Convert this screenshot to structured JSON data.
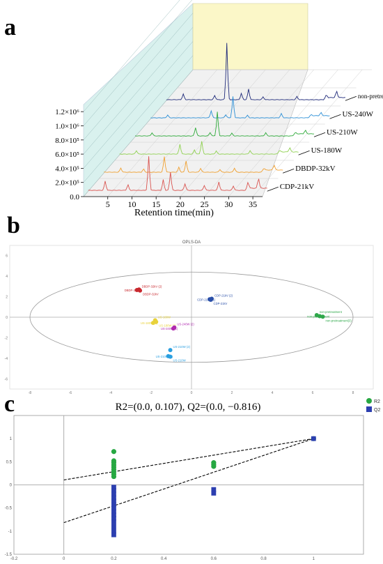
{
  "panel_labels": {
    "a": "a",
    "b": "b",
    "c": "c"
  },
  "chart_data": [
    {
      "type": "line",
      "panel": "a",
      "xlabel": "Retention time(min)",
      "x_ticks": [
        5,
        10,
        15,
        20,
        25,
        30,
        35
      ],
      "y_ticks": [
        "0.0",
        "2.0×10⁵",
        "4.0×10⁵",
        "6.0×10⁵",
        "8.0×10⁵",
        "1.0×10⁶",
        "1.2×10⁶"
      ],
      "ylim": [
        0,
        1300000
      ],
      "xlim": [
        0,
        37
      ],
      "series": [
        {
          "name": "CDP-21kV",
          "color": "#d9534f",
          "peaks": [
            [
              3.5,
              130000
            ],
            [
              8.2,
              80000
            ],
            [
              12.5,
              480000
            ],
            [
              15.5,
              150000
            ],
            [
              17,
              260000
            ],
            [
              20,
              95000
            ],
            [
              24,
              70000
            ],
            [
              27,
              120000
            ],
            [
              30,
              60000
            ],
            [
              33,
              110000
            ],
            [
              35.2,
              140000
            ]
          ]
        },
        {
          "name": "DBDP-32kV",
          "color": "#f0a030",
          "peaks": [
            [
              3.5,
              60000
            ],
            [
              8.2,
              45000
            ],
            [
              12.5,
              220000
            ],
            [
              15.5,
              70000
            ],
            [
              17,
              160000
            ],
            [
              20,
              55000
            ],
            [
              24,
              40000
            ],
            [
              27,
              60000
            ],
            [
              33,
              50000
            ],
            [
              35.2,
              70000
            ]
          ]
        },
        {
          "name": "US-180W",
          "color": "#8fd14f",
          "peaks": [
            [
              3.5,
              50000
            ],
            [
              12.5,
              140000
            ],
            [
              15.5,
              60000
            ],
            [
              17,
              180000
            ],
            [
              20,
              45000
            ],
            [
              27,
              50000
            ],
            [
              33,
              45000
            ],
            [
              35.2,
              60000
            ]
          ]
        },
        {
          "name": "US-210W",
          "color": "#2eaa3a",
          "peaks": [
            [
              3.5,
              45000
            ],
            [
              12.5,
              120000
            ],
            [
              15.5,
              50000
            ],
            [
              17,
              340000
            ],
            [
              20,
              40000
            ],
            [
              27,
              45000
            ],
            [
              33,
              40000
            ],
            [
              35.2,
              50000
            ]
          ]
        },
        {
          "name": "US-240W",
          "color": "#2b8fd6",
          "peaks": [
            [
              3.5,
              40000
            ],
            [
              12.5,
              100000
            ],
            [
              15.5,
              45000
            ],
            [
              17,
              300000
            ],
            [
              20,
              35000
            ],
            [
              27,
              60000
            ],
            [
              33,
              35000
            ],
            [
              35.2,
              45000
            ]
          ]
        },
        {
          "name": "non-pretreatment",
          "color": "#1f2a7a",
          "peaks": [
            [
              3.5,
              80000
            ],
            [
              10,
              60000
            ],
            [
              12.5,
              800000
            ],
            [
              15.5,
              90000
            ],
            [
              17,
              150000
            ],
            [
              20,
              40000
            ],
            [
              27,
              45000
            ],
            [
              33,
              60000
            ],
            [
              35.2,
              90000
            ]
          ]
        }
      ]
    },
    {
      "type": "scatter",
      "panel": "b",
      "title": "OPLS-DA",
      "xlim": [
        -9,
        9
      ],
      "ylim": [
        -7,
        7
      ],
      "x_ticks": [
        -8,
        -6,
        -4,
        -2,
        0,
        2,
        4,
        6,
        8
      ],
      "y_ticks": [
        -6,
        -4,
        -2,
        0,
        2,
        4,
        6
      ],
      "groups": [
        {
          "color": "#c8282e",
          "points": [
            {
              "x": -2.6,
              "y": 2.7,
              "label": "DBDP-32kV (2)"
            },
            {
              "x": -2.7,
              "y": 2.65,
              "label": "DBDP-32kV"
            },
            {
              "x": -2.55,
              "y": 2.6,
              "label": "DBDP-32kV"
            }
          ]
        },
        {
          "color": "#2a4fa8",
          "points": [
            {
              "x": 1.0,
              "y": 1.8,
              "label": "CDP-21kV (2)"
            },
            {
              "x": 0.9,
              "y": 1.75,
              "label": "CDP-21kV (1)"
            },
            {
              "x": 0.95,
              "y": 1.7,
              "label": "CDP-21kV"
            }
          ]
        },
        {
          "color": "#e8d23a",
          "points": [
            {
              "x": -1.8,
              "y": -0.3,
              "label": "US-180W"
            },
            {
              "x": -1.9,
              "y": -0.55,
              "label": "US-180W (1)"
            },
            {
              "x": -1.75,
              "y": -0.45,
              "label": "US-180W (2)"
            }
          ]
        },
        {
          "color": "#b02ab0",
          "points": [
            {
              "x": -0.85,
              "y": -1.0,
              "label": "US-240W (2)"
            },
            {
              "x": -0.9,
              "y": -1.1,
              "label": "US-240W (1)"
            }
          ]
        },
        {
          "color": "#2a9fe0",
          "points": [
            {
              "x": -1.05,
              "y": -3.2,
              "label": "US-210W (2)"
            },
            {
              "x": -1.15,
              "y": -3.8,
              "label": "US-210W (1)"
            },
            {
              "x": -1.05,
              "y": -3.85,
              "label": "US-210W"
            }
          ]
        },
        {
          "color": "#2ea84a",
          "points": [
            {
              "x": 6.2,
              "y": 0.2,
              "label": "non-pretreatment"
            },
            {
              "x": 6.35,
              "y": 0.1,
              "label": "non-pretreatment"
            },
            {
              "x": 6.5,
              "y": 0.05,
              "label": "non-pretreatment(3)"
            }
          ]
        }
      ],
      "ellipse": {
        "cx": 0,
        "cy": 0,
        "rx": 8.0,
        "ry": 4.4
      }
    },
    {
      "type": "scatter",
      "panel": "c",
      "title": "R2=(0.0, 0.107), Q2=(0.0, −0.816)",
      "xlim": [
        -0.2,
        1.2
      ],
      "ylim": [
        -1.5,
        1.5
      ],
      "x_ticks": [
        -0.2,
        0,
        0.2,
        0.4,
        0.6,
        0.8,
        1
      ],
      "y_ticks": [
        -1.5,
        -1,
        -0.5,
        0,
        0.5,
        1
      ],
      "legend": {
        "placement": "top-right",
        "entries": [
          "R2",
          "Q2"
        ]
      },
      "series": [
        {
          "name": "R2",
          "color": "#27a842",
          "marker": "circle",
          "points": [
            [
              0.2,
              0.72
            ],
            [
              0.2,
              0.52
            ],
            [
              0.2,
              0.48
            ],
            [
              0.2,
              0.43
            ],
            [
              0.2,
              0.38
            ],
            [
              0.2,
              0.33
            ],
            [
              0.2,
              0.28
            ],
            [
              0.2,
              0.23
            ],
            [
              0.2,
              0.18
            ],
            [
              0.6,
              0.48
            ],
            [
              0.6,
              0.44
            ],
            [
              0.6,
              0.4
            ],
            [
              1,
              1
            ]
          ]
        },
        {
          "name": "Q2",
          "color": "#2c3fb0",
          "marker": "square",
          "points": [
            [
              0.2,
              -0.05
            ],
            [
              0.2,
              -0.12
            ],
            [
              0.2,
              -0.2
            ],
            [
              0.2,
              -0.28
            ],
            [
              0.2,
              -0.35
            ],
            [
              0.2,
              -0.42
            ],
            [
              0.2,
              -0.5
            ],
            [
              0.2,
              -0.58
            ],
            [
              0.2,
              -0.65
            ],
            [
              0.2,
              -0.72
            ],
            [
              0.2,
              -0.8
            ],
            [
              0.2,
              -0.9
            ],
            [
              0.2,
              -1.0
            ],
            [
              0.2,
              -1.08
            ],
            [
              0.6,
              -0.1
            ],
            [
              0.6,
              -0.18
            ],
            [
              1,
              1
            ]
          ]
        }
      ],
      "regression_lines": [
        {
          "name": "R2",
          "x": [
            0,
            1
          ],
          "y": [
            0.107,
            1
          ]
        },
        {
          "name": "Q2",
          "x": [
            0,
            1
          ],
          "y": [
            -0.816,
            1
          ]
        }
      ]
    }
  ]
}
